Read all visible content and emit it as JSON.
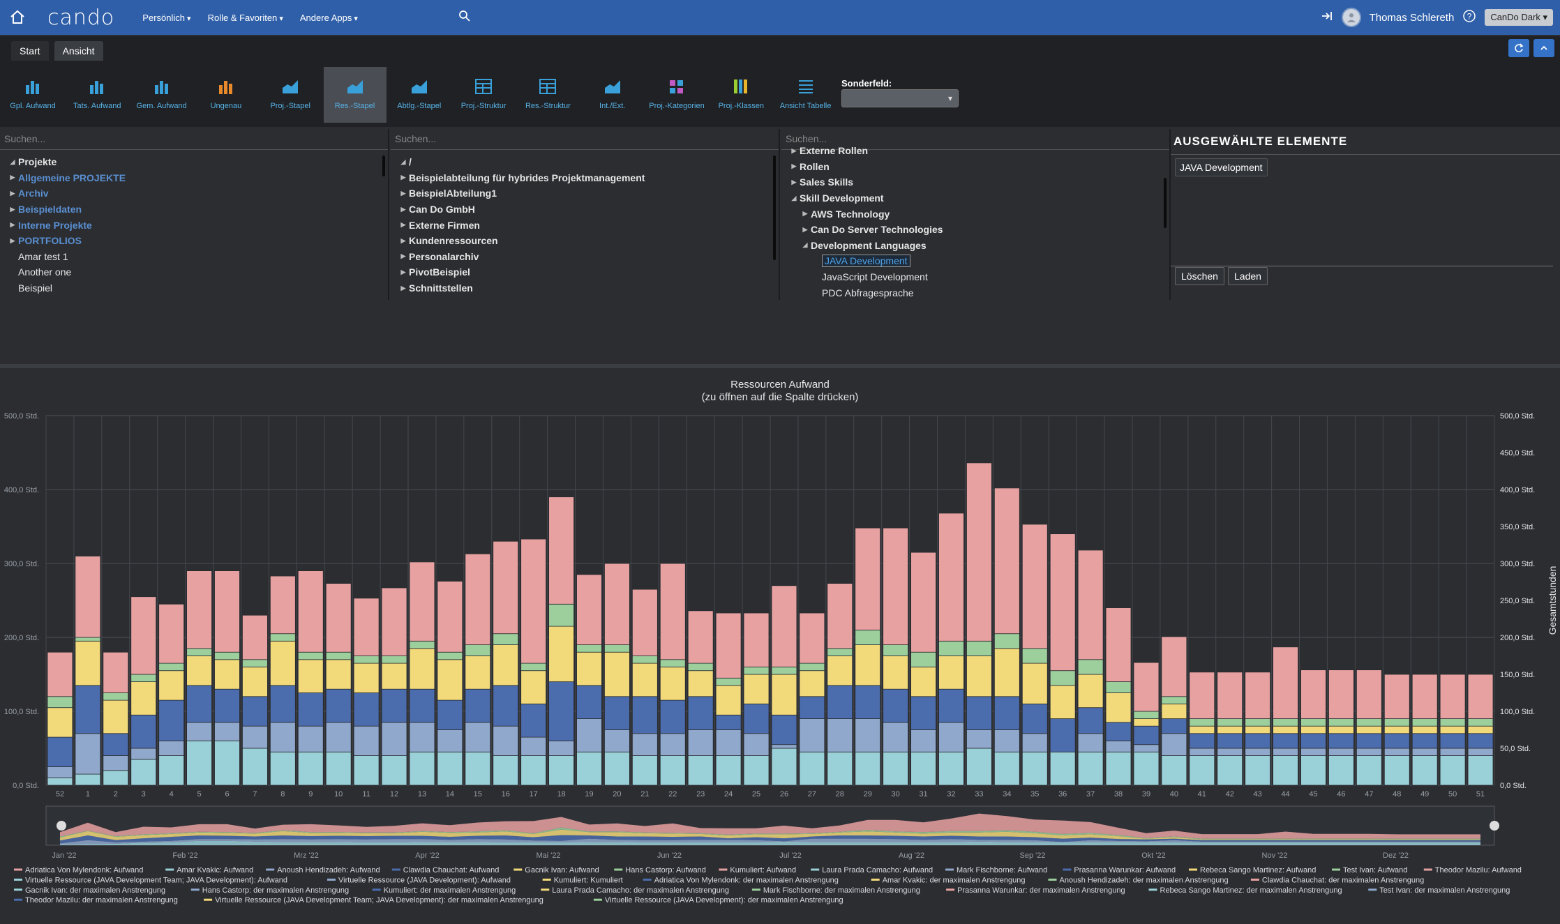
{
  "app": {
    "logo": "cando"
  },
  "nav": {
    "items": [
      "Persönlich",
      "Rolle & Favoriten",
      "Andere Apps"
    ]
  },
  "user": {
    "name": "Thomas Schlereth",
    "theme": "CanDo Dark"
  },
  "tabs": [
    "Start",
    "Ansicht"
  ],
  "ribbon": {
    "buttons": [
      {
        "label": "Gpl. Aufwand",
        "icon": "bar-chart-icon"
      },
      {
        "label": "Tats. Aufwand",
        "icon": "bar-chart-icon"
      },
      {
        "label": "Gem. Aufwand",
        "icon": "bar-chart-icon"
      },
      {
        "label": "Ungenau",
        "icon": "bar-chart-orange-icon"
      },
      {
        "label": "Proj.-Stapel",
        "icon": "area-chart-icon"
      },
      {
        "label": "Res.-Stapel",
        "icon": "area-chart-icon"
      },
      {
        "label": "Abtlg.-Stapel",
        "icon": "area-chart-icon"
      },
      {
        "label": "Proj.-Struktur",
        "icon": "table-structure-icon"
      },
      {
        "label": "Res.-Struktur",
        "icon": "table-structure-icon"
      },
      {
        "label": "Int./Ext.",
        "icon": "area-chart-icon"
      },
      {
        "label": "Proj.-Kategorien",
        "icon": "categories-icon"
      },
      {
        "label": "Proj.-Klassen",
        "icon": "classes-icon"
      },
      {
        "label": "Ansicht Tabelle",
        "icon": "list-icon"
      }
    ],
    "active_index": 5,
    "sonderfeld_label": "Sonderfeld:"
  },
  "panels": {
    "search_placeholder": "Suchen...",
    "projects": [
      {
        "label": "Projekte",
        "arrow": "◢",
        "style": "bold"
      },
      {
        "label": "Allgemeine PROJEKTE",
        "arrow": "▶",
        "style": "blue"
      },
      {
        "label": "Archiv",
        "arrow": "▶",
        "style": "blue"
      },
      {
        "label": "Beispieldaten",
        "arrow": "▶",
        "style": "blue"
      },
      {
        "label": "Interne Projekte",
        "arrow": "▶",
        "style": "blue"
      },
      {
        "label": "PORTFOLIOS",
        "arrow": "▶",
        "style": "blue"
      },
      {
        "label": "Amar test 1",
        "arrow": "",
        "style": "plain"
      },
      {
        "label": "Another one",
        "arrow": "",
        "style": "plain"
      },
      {
        "label": "Beispiel",
        "arrow": "",
        "style": "plain"
      }
    ],
    "orgs": [
      {
        "label": "/",
        "arrow": "◢",
        "style": "bold"
      },
      {
        "label": "Beispielabteilung für hybrides Projektmanagement",
        "arrow": "▶",
        "style": "bold"
      },
      {
        "label": "BeispielAbteilung1",
        "arrow": "▶",
        "style": "bold"
      },
      {
        "label": "Can Do GmbH",
        "arrow": "▶",
        "style": "bold"
      },
      {
        "label": "Externe Firmen",
        "arrow": "▶",
        "style": "bold"
      },
      {
        "label": "Kundenressourcen",
        "arrow": "▶",
        "style": "bold"
      },
      {
        "label": "Personalarchiv",
        "arrow": "▶",
        "style": "bold"
      },
      {
        "label": "PivotBeispiel",
        "arrow": "▶",
        "style": "bold"
      },
      {
        "label": "Schnittstellen",
        "arrow": "▶",
        "style": "bold"
      }
    ],
    "skills": [
      {
        "label": "Externe Rollen",
        "arrow": "▶",
        "style": "bold",
        "indent": 0
      },
      {
        "label": "Rollen",
        "arrow": "▶",
        "style": "bold",
        "indent": 0
      },
      {
        "label": "Sales Skills",
        "arrow": "▶",
        "style": "bold",
        "indent": 0
      },
      {
        "label": "Skill Development",
        "arrow": "◢",
        "style": "bold",
        "indent": 0
      },
      {
        "label": "AWS Technology",
        "arrow": "▶",
        "style": "bold",
        "indent": 1
      },
      {
        "label": "Can Do Server Technologies",
        "arrow": "▶",
        "style": "bold",
        "indent": 1
      },
      {
        "label": "Development Languages",
        "arrow": "◢",
        "style": "bold",
        "indent": 1
      },
      {
        "label": "JAVA Development",
        "arrow": "",
        "style": "sel",
        "indent": 2
      },
      {
        "label": "JavaScript Development",
        "arrow": "",
        "style": "plain",
        "indent": 2
      },
      {
        "label": "PDC Abfragesprache",
        "arrow": "",
        "style": "plain",
        "indent": 2
      }
    ],
    "selected_title": "AUSGEWÄHLTE ELEMENTE",
    "selected_items": [
      "JAVA Development"
    ],
    "btn_delete": "Löschen",
    "btn_load": "Laden"
  },
  "colors": {
    "teal": "#9ad0d8",
    "ltblue": "#8fa8cc",
    "blue": "#4b6cad",
    "yellow": "#f2d97a",
    "green": "#9ccf9c",
    "pink": "#e7a1a1",
    "accent": "#2f5fa8"
  },
  "chart_data": {
    "type": "bar",
    "title": "Ressourcen Aufwand",
    "subtitle": "(zu öffnen auf die Spalte drücken)",
    "ylabel": "Gesamtstunden",
    "ylim": [
      0,
      500
    ],
    "yticks_left": [
      "0,0 Std.",
      "100,0 Std.",
      "200,0 Std.",
      "300,0 Std.",
      "400,0 Std.",
      "500,0 Std."
    ],
    "yticks_right": [
      "0,0 Std.",
      "50,0 Std.",
      "100,0 Std.",
      "150,0 Std.",
      "200,0 Std.",
      "250,0 Std.",
      "300,0 Std.",
      "350,0 Std.",
      "400,0 Std.",
      "450,0 Std.",
      "500,0 Std."
    ],
    "categories": [
      "52",
      "1",
      "2",
      "3",
      "4",
      "5",
      "6",
      "7",
      "8",
      "9",
      "10",
      "11",
      "12",
      "13",
      "14",
      "15",
      "16",
      "17",
      "18",
      "19",
      "20",
      "21",
      "22",
      "23",
      "24",
      "25",
      "26",
      "27",
      "28",
      "29",
      "30",
      "31",
      "32",
      "33",
      "34",
      "35",
      "36",
      "37",
      "38",
      "39",
      "40",
      "41",
      "42",
      "43",
      "44",
      "45",
      "46",
      "47",
      "48",
      "49",
      "50",
      "51"
    ],
    "totals": [
      180,
      310,
      180,
      255,
      245,
      290,
      290,
      230,
      283,
      290,
      273,
      253,
      267,
      302,
      276,
      313,
      330,
      333,
      390,
      285,
      300,
      265,
      300,
      236,
      233,
      233,
      270,
      233,
      273,
      348,
      348,
      315,
      368,
      436,
      402,
      353,
      340,
      318,
      240,
      166,
      201,
      153,
      153,
      153,
      187,
      156,
      156,
      156,
      150,
      150,
      150,
      150
    ],
    "stack_colors": [
      "teal",
      "ltblue",
      "blue",
      "yellow",
      "green",
      "pink"
    ],
    "stacks": [
      [
        10,
        15,
        20,
        35,
        40,
        60,
        60,
        50,
        45,
        45,
        45,
        40,
        40,
        45,
        45,
        45,
        40,
        40,
        40,
        45,
        45,
        40,
        40,
        40,
        40,
        40,
        50,
        45,
        45,
        45,
        45,
        45,
        45,
        50,
        45,
        45,
        45,
        45,
        45,
        45,
        40,
        40,
        40,
        40,
        40,
        40,
        40,
        40,
        40,
        40,
        40,
        40
      ],
      [
        15,
        55,
        20,
        15,
        20,
        25,
        25,
        30,
        40,
        35,
        40,
        40,
        45,
        40,
        30,
        40,
        40,
        25,
        20,
        45,
        30,
        30,
        30,
        35,
        35,
        30,
        5,
        45,
        45,
        45,
        40,
        30,
        40,
        25,
        30,
        25,
        0,
        25,
        15,
        10,
        30,
        10,
        10,
        10,
        10,
        10,
        10,
        10,
        10,
        10,
        10,
        10
      ],
      [
        40,
        65,
        30,
        45,
        55,
        50,
        45,
        40,
        50,
        45,
        45,
        45,
        45,
        45,
        40,
        45,
        55,
        45,
        80,
        45,
        45,
        50,
        45,
        45,
        20,
        40,
        40,
        30,
        45,
        45,
        45,
        45,
        45,
        45,
        45,
        40,
        45,
        35,
        25,
        25,
        20,
        20,
        20,
        20,
        20,
        20,
        20,
        20,
        20,
        20,
        20,
        20
      ],
      [
        40,
        60,
        45,
        45,
        40,
        40,
        40,
        40,
        60,
        45,
        40,
        40,
        35,
        55,
        55,
        45,
        55,
        45,
        75,
        45,
        60,
        45,
        45,
        35,
        40,
        40,
        55,
        35,
        40,
        55,
        45,
        40,
        45,
        55,
        65,
        55,
        45,
        45,
        40,
        10,
        20,
        10,
        10,
        10,
        10,
        10,
        10,
        10,
        10,
        10,
        10,
        10
      ],
      [
        15,
        5,
        10,
        10,
        10,
        10,
        10,
        10,
        10,
        10,
        10,
        10,
        10,
        10,
        10,
        15,
        15,
        10,
        30,
        10,
        10,
        10,
        10,
        10,
        10,
        10,
        10,
        10,
        10,
        20,
        15,
        20,
        20,
        20,
        20,
        20,
        20,
        20,
        15,
        10,
        10,
        10,
        10,
        10,
        10,
        10,
        10,
        10,
        10,
        10,
        10,
        10
      ],
      [
        60,
        110,
        55,
        105,
        80,
        105,
        110,
        60,
        78,
        110,
        93,
        78,
        92,
        107,
        96,
        123,
        125,
        168,
        145,
        95,
        110,
        90,
        130,
        71,
        88,
        73,
        110,
        68,
        88,
        138,
        158,
        135,
        173,
        241,
        197,
        168,
        185,
        148,
        100,
        66,
        81,
        63,
        63,
        63,
        97,
        66,
        66,
        66,
        60,
        60,
        60,
        60
      ]
    ],
    "navigator_months": [
      "Jan '22",
      "Feb '22",
      "Mrz '22",
      "Apr '22",
      "Mai '22",
      "Jun '22",
      "Jul '22",
      "Aug '22",
      "Sep '22",
      "Okt '22",
      "Nov '22",
      "Dez '22"
    ],
    "legend": [
      {
        "name": "Adriatica Von Mylendonk: Aufwand",
        "color": "#e7a1a1"
      },
      {
        "name": "Amar Kvakic: Aufwand",
        "color": "#9ad0d8"
      },
      {
        "name": "Anoush Hendizadeh: Aufwand",
        "color": "#8fa8cc"
      },
      {
        "name": "Clawdia Chauchat: Aufwand",
        "color": "#4b6cad"
      },
      {
        "name": "Gacnik Ivan: Aufwand",
        "color": "#f2d97a"
      },
      {
        "name": "Hans Castorp: Aufwand",
        "color": "#9ccf9c"
      },
      {
        "name": "Kumuliert: Aufwand",
        "color": "#e7a1a1"
      },
      {
        "name": "Laura Prada Camacho: Aufwand",
        "color": "#9ad0d8"
      },
      {
        "name": "Mark Fischborne: Aufwand",
        "color": "#8fa8cc"
      },
      {
        "name": "Prasanna Warunkar: Aufwand",
        "color": "#4b6cad"
      },
      {
        "name": "Rebeca Sango Martinez: Aufwand",
        "color": "#f2d97a"
      },
      {
        "name": "Test Ivan: Aufwand",
        "color": "#9ccf9c"
      },
      {
        "name": "Theodor Mazilu: Aufwand",
        "color": "#e7a1a1"
      },
      {
        "name": "Virtuelle Ressource (JAVA Development Team; JAVA Development): Aufwand",
        "color": "#9ad0d8"
      },
      {
        "name": "Virtuelle Ressource (JAVA Development): Aufwand",
        "color": "#8fa8cc"
      },
      {
        "name": "Kumuliert: Kumuliert",
        "color": "#f2d97a"
      },
      {
        "name": "Adriatica Von Mylendonk: der maximalen Anstrengung",
        "color": "#4b6cad"
      },
      {
        "name": "Amar Kvakic: der maximalen Anstrengung",
        "color": "#f2d97a"
      },
      {
        "name": "Anoush Hendizadeh: der maximalen Anstrengung",
        "color": "#9ccf9c"
      },
      {
        "name": "Clawdia Chauchat: der maximalen Anstrengung",
        "color": "#e7a1a1"
      },
      {
        "name": "Gacnik Ivan: der maximalen Anstrengung",
        "color": "#9ad0d8"
      },
      {
        "name": "Hans Castorp: der maximalen Anstrengung",
        "color": "#8fa8cc"
      },
      {
        "name": "Kumuliert: der maximalen Anstrengung",
        "color": "#4b6cad"
      },
      {
        "name": "Laura Prada Camacho: der maximalen Anstrengung",
        "color": "#f2d97a"
      },
      {
        "name": "Mark Fischborne: der maximalen Anstrengung",
        "color": "#9ccf9c"
      },
      {
        "name": "Prasanna Warunkar: der maximalen Anstrengung",
        "color": "#e7a1a1"
      },
      {
        "name": "Rebeca Sango Martinez: der maximalen Anstrengung",
        "color": "#9ad0d8"
      },
      {
        "name": "Test Ivan: der maximalen Anstrengung",
        "color": "#8fa8cc"
      },
      {
        "name": "Theodor Mazilu: der maximalen Anstrengung",
        "color": "#4b6cad"
      },
      {
        "name": "Virtuelle Ressource (JAVA Development Team; JAVA Development): der maximalen Anstrengung",
        "color": "#f2d97a"
      },
      {
        "name": "Virtuelle Ressource (JAVA Development): der maximalen Anstrengung",
        "color": "#9ccf9c"
      }
    ]
  }
}
